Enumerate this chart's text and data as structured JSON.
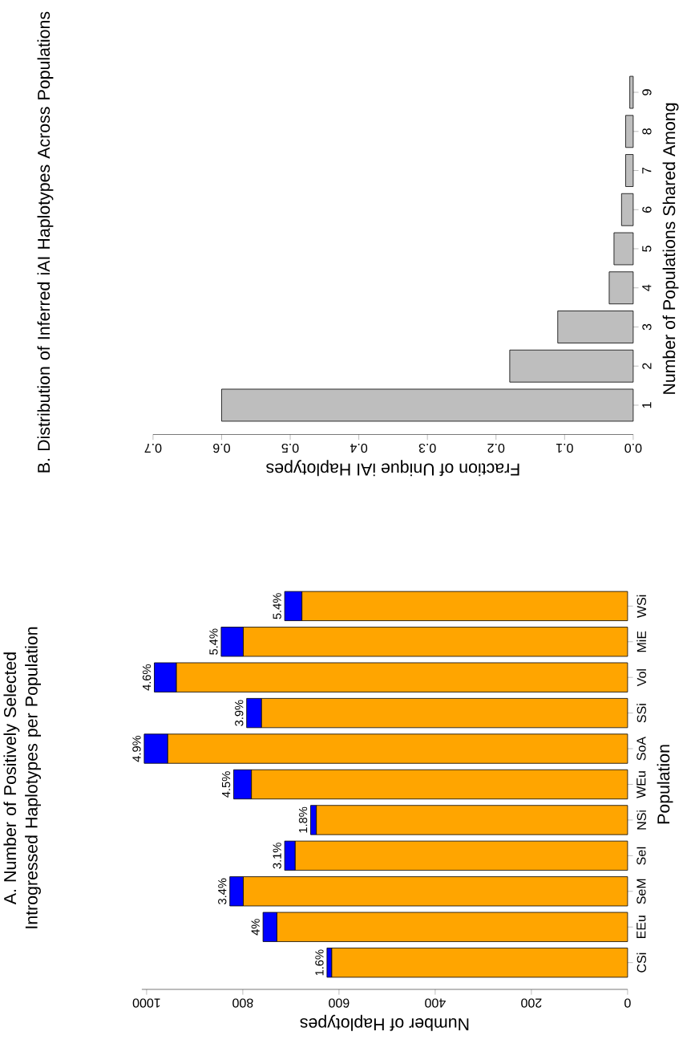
{
  "chart_data": [
    {
      "type": "bar",
      "orientation": "horizontal",
      "stacked": true,
      "title": "A.  Number of Positively Selected Introgressed Haplotypes per Population",
      "xlabel": "Number of Haplotypes",
      "ylabel": "Population",
      "categories": [
        "WSi",
        "MiE",
        "Vol",
        "SSi",
        "SoA",
        "WEu",
        "NSi",
        "SeI",
        "SeM",
        "EEu",
        "CSi"
      ],
      "series": [
        {
          "color": "#ffa500",
          "values": [
            677,
            799,
            938,
            761,
            956,
            782,
            647,
            691,
            799,
            729,
            615
          ]
        },
        {
          "color": "#0000ff",
          "values": [
            36,
            46,
            46,
            31,
            49,
            37,
            12,
            22,
            28,
            29,
            10
          ]
        }
      ],
      "annotations": [
        {
          "text": "5.4%",
          "x": 713,
          "y": "WSi"
        },
        {
          "text": "5.4%",
          "x": 845,
          "y": "MiE"
        },
        {
          "text": "4.6%",
          "x": 984,
          "y": "Vol"
        },
        {
          "text": "3.9%",
          "x": 792,
          "y": "SSi"
        },
        {
          "text": "4.9%",
          "x": 1005,
          "y": "SoA"
        },
        {
          "text": "4.5%",
          "x": 819,
          "y": "WEu"
        },
        {
          "text": "1.8%",
          "x": 659,
          "y": "NSi"
        },
        {
          "text": "3.1%",
          "x": 713,
          "y": "SeI"
        },
        {
          "text": "3.4%",
          "x": 827,
          "y": "SeM"
        },
        {
          "text": "4%",
          "x": 758,
          "y": "EEu"
        },
        {
          "text": "1.6%",
          "x": 625,
          "y": "CSi"
        }
      ],
      "xlim": [
        1010,
        0
      ],
      "xticks": [
        0,
        200,
        400,
        600,
        800,
        1000
      ]
    },
    {
      "type": "bar",
      "orientation": "horizontal",
      "title": "B.  Distribution of Inferred iAI Haplotypes Across Populations",
      "xlabel": "Fraction of Unique iAI Haplotypes",
      "ylabel": "Number of Populations Shared Among",
      "categories": [
        "9",
        "8",
        "7",
        "6",
        "5",
        "4",
        "3",
        "2",
        "1"
      ],
      "values": [
        0.005,
        0.011,
        0.011,
        0.017,
        0.028,
        0.035,
        0.11,
        0.18,
        0.6
      ],
      "color": "#bebebe",
      "xlim": [
        0.7,
        0
      ],
      "xticks": [
        {
          "value": 0,
          "label": "0.0"
        },
        0.1,
        0.2,
        0.3,
        0.4,
        0.5,
        0.6,
        0.7
      ]
    }
  ]
}
